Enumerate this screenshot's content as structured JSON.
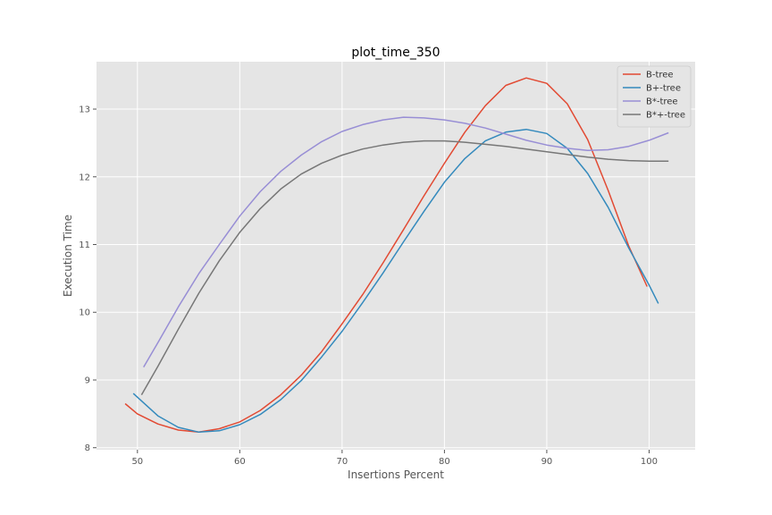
{
  "chart_data": {
    "type": "line",
    "title": "plot_time_350",
    "xlabel": "Insertions Percent",
    "ylabel": "Execution Time",
    "xlim": [
      46,
      104.5
    ],
    "ylim": [
      7.97,
      13.7
    ],
    "xticks": [
      50,
      60,
      70,
      80,
      90,
      100
    ],
    "yticks": [
      8,
      9,
      10,
      11,
      12,
      13
    ],
    "xtick_labels": [
      "50",
      "60",
      "70",
      "80",
      "90",
      "100"
    ],
    "ytick_labels": [
      "8",
      "9",
      "10",
      "11",
      "12",
      "13"
    ],
    "grid": true,
    "legend": "top-right",
    "series": [
      {
        "name": "B-tree",
        "color": "#e24a33",
        "x": [
          48.8,
          50,
          52,
          54,
          56,
          58,
          60,
          62,
          64,
          66,
          68,
          70,
          72,
          74,
          76,
          78,
          80,
          82,
          84,
          86,
          88,
          90,
          92,
          94,
          96,
          98,
          99.8
        ],
        "y": [
          8.65,
          8.5,
          8.35,
          8.26,
          8.23,
          8.28,
          8.38,
          8.55,
          8.78,
          9.07,
          9.42,
          9.83,
          10.26,
          10.73,
          11.22,
          11.72,
          12.2,
          12.66,
          13.05,
          13.35,
          13.46,
          13.38,
          13.08,
          12.55,
          11.8,
          10.98,
          10.38
        ]
      },
      {
        "name": "B+-tree",
        "color": "#348abd",
        "x": [
          49.6,
          52,
          54,
          56,
          58,
          60,
          62,
          64,
          66,
          68,
          70,
          72,
          74,
          76,
          78,
          80,
          82,
          84,
          86,
          88,
          90,
          92,
          94,
          96,
          98,
          100,
          100.9
        ],
        "y": [
          8.8,
          8.47,
          8.3,
          8.23,
          8.25,
          8.34,
          8.49,
          8.71,
          8.99,
          9.34,
          9.72,
          10.14,
          10.58,
          11.04,
          11.49,
          11.92,
          12.27,
          12.53,
          12.66,
          12.7,
          12.64,
          12.42,
          12.05,
          11.55,
          10.95,
          10.4,
          10.13
        ]
      },
      {
        "name": "B*-tree",
        "color": "#988ed5",
        "x": [
          50.6,
          52,
          54,
          56,
          58,
          60,
          62,
          64,
          66,
          68,
          70,
          72,
          74,
          76,
          78,
          80,
          82,
          84,
          86,
          88,
          90,
          92,
          94,
          96,
          98,
          100,
          101.9
        ],
        "y": [
          9.19,
          9.55,
          10.08,
          10.57,
          11.0,
          11.42,
          11.78,
          12.08,
          12.32,
          12.52,
          12.67,
          12.77,
          12.84,
          12.88,
          12.87,
          12.84,
          12.79,
          12.72,
          12.63,
          12.54,
          12.47,
          12.42,
          12.39,
          12.4,
          12.45,
          12.54,
          12.65
        ]
      },
      {
        "name": "B*+-tree",
        "color": "#777777",
        "x": [
          50.4,
          52,
          54,
          56,
          58,
          60,
          62,
          64,
          66,
          68,
          70,
          72,
          74,
          76,
          78,
          80,
          82,
          84,
          86,
          88,
          90,
          92,
          94,
          96,
          98,
          100,
          101.9
        ],
        "y": [
          8.78,
          9.2,
          9.75,
          10.28,
          10.76,
          11.18,
          11.53,
          11.82,
          12.04,
          12.2,
          12.32,
          12.41,
          12.47,
          12.51,
          12.53,
          12.53,
          12.51,
          12.48,
          12.45,
          12.41,
          12.37,
          12.33,
          12.29,
          12.26,
          12.24,
          12.23,
          12.23
        ]
      }
    ]
  }
}
